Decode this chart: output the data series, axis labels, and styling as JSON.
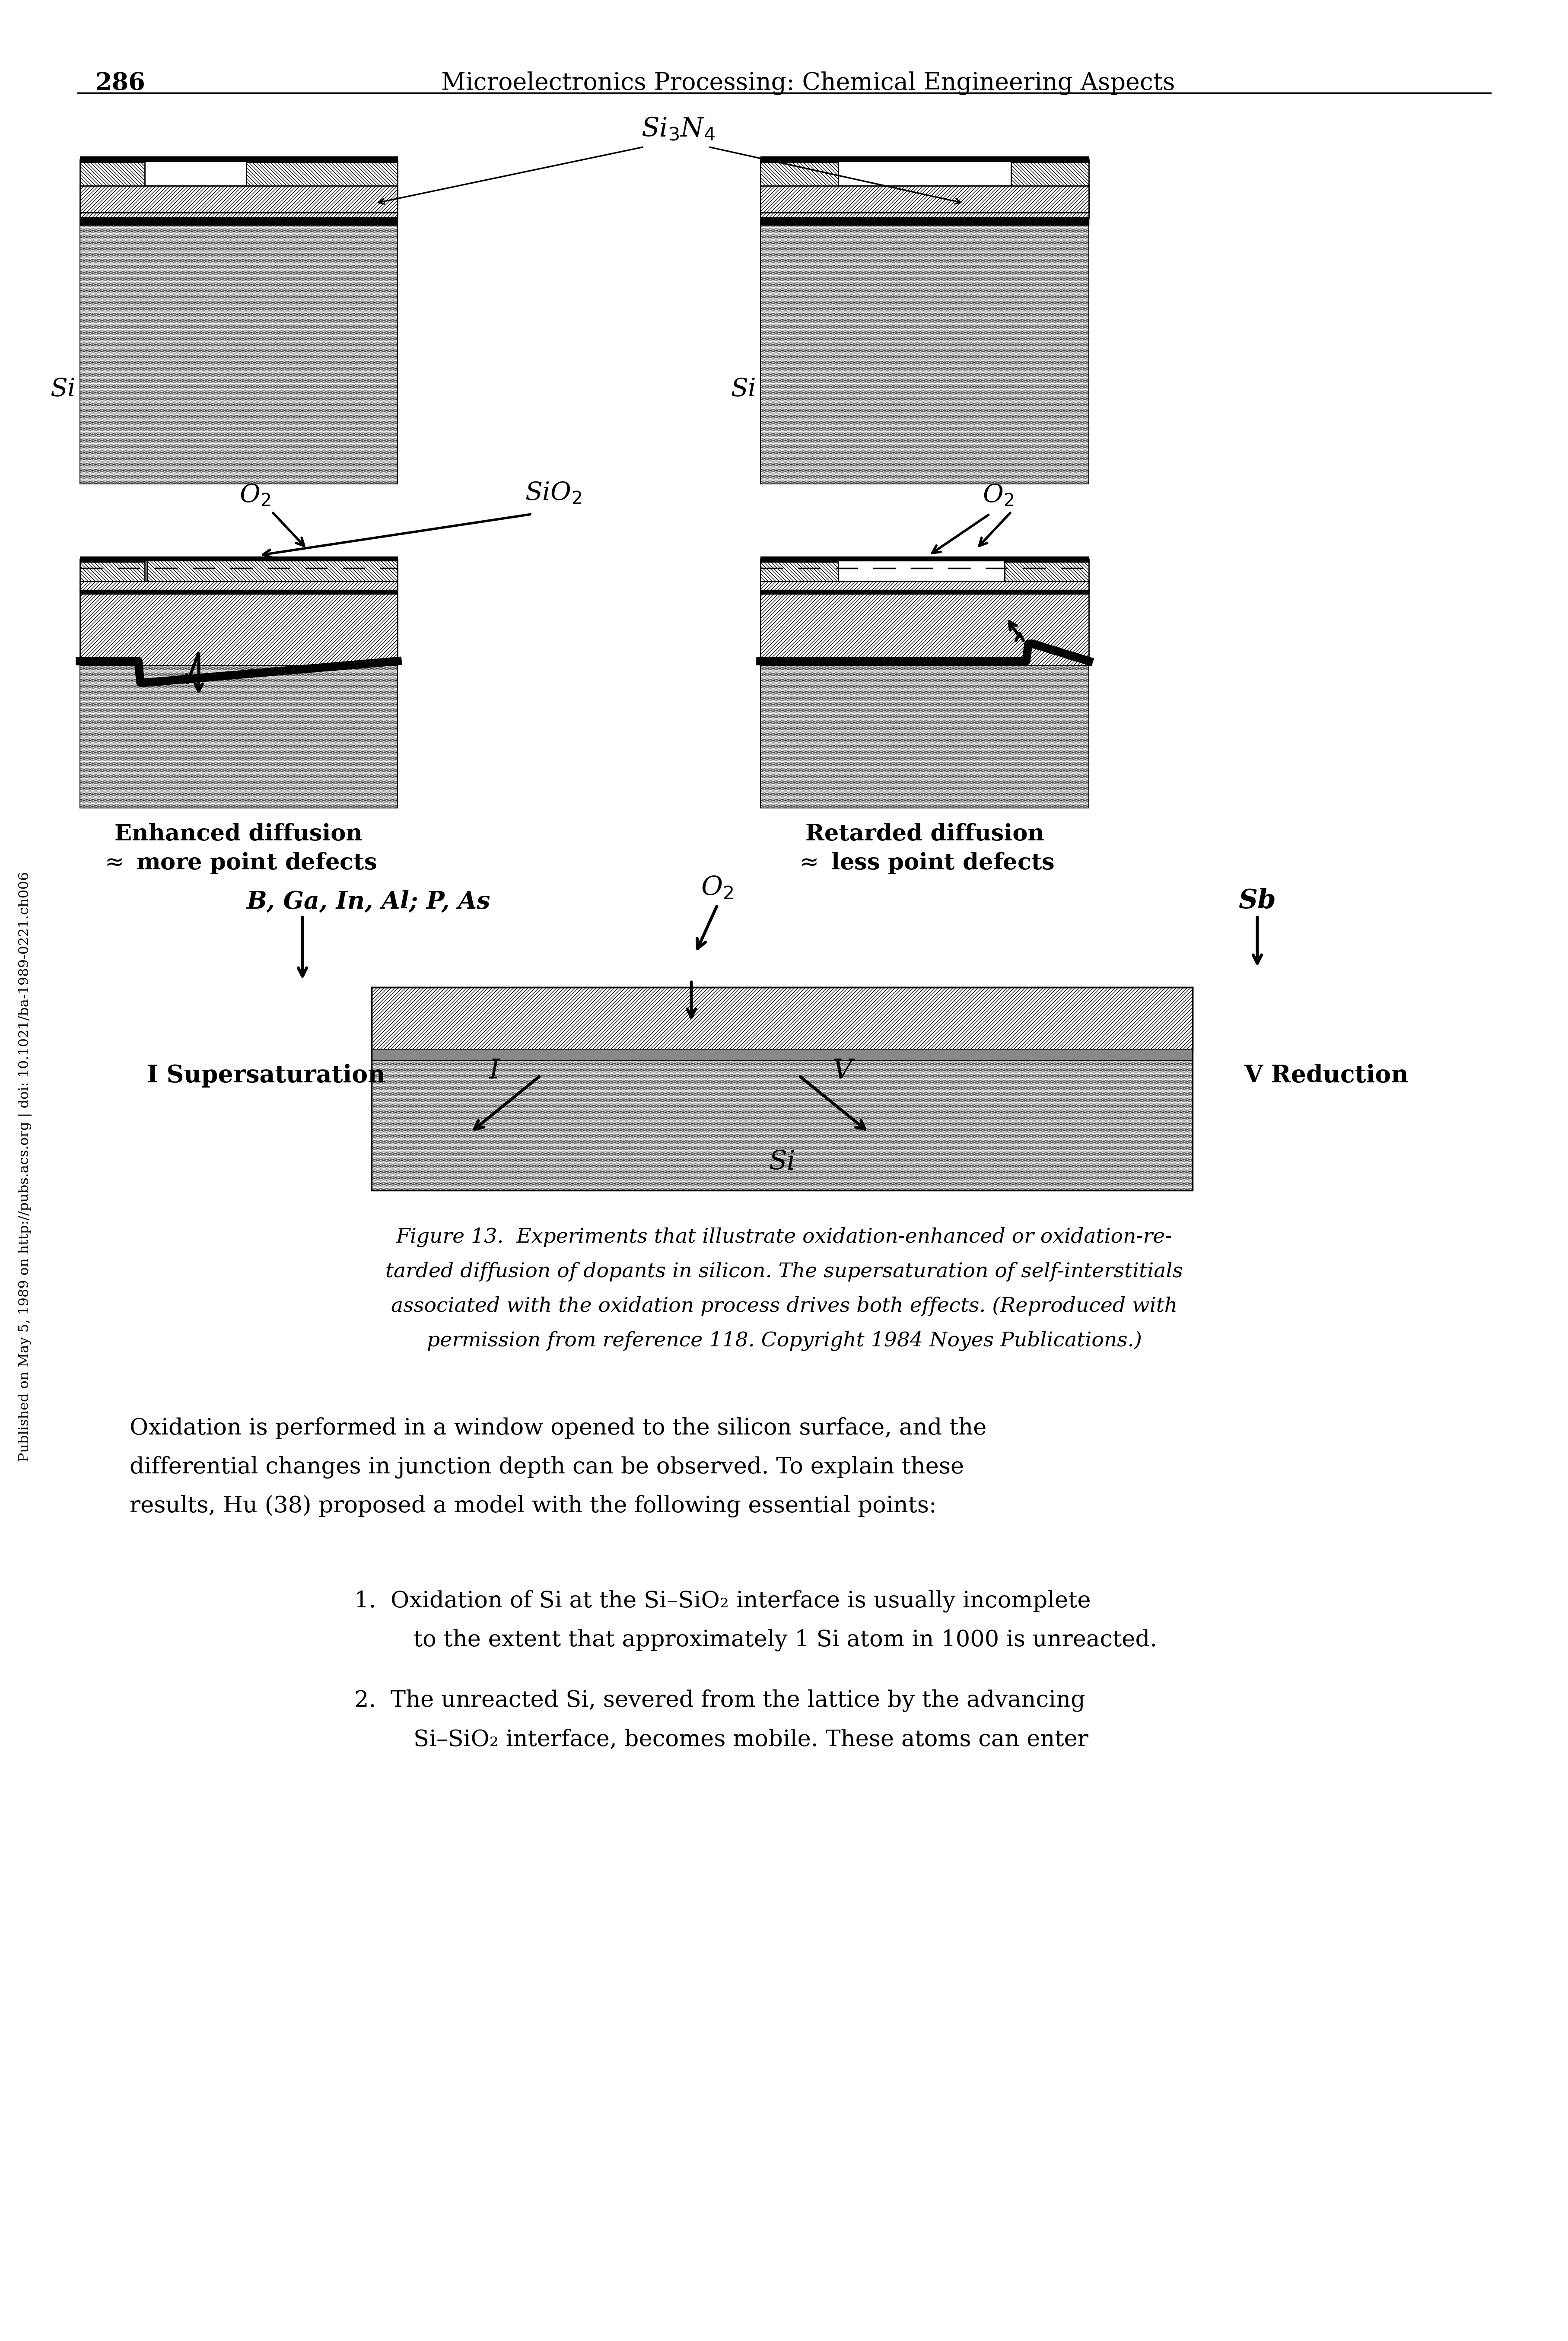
{
  "page_number": "286",
  "header_title": "Microelectronics Processing: Chemical Engineering Aspects",
  "figure_caption_line1": "Figure 13.  Experiments that illustrate oxidation-enhanced or oxidation-re-",
  "figure_caption_line2": "tarded diffusion of dopants in silicon. The supersaturation of self-interstitials",
  "figure_caption_line3": "associated with the oxidation process drives both effects. (Reproduced with",
  "figure_caption_line4": "permission from reference 118. Copyright 1984 Noyes Publications.)",
  "body_text_line1": "Oxidation is performed in a window opened to the silicon surface, and the",
  "body_text_line2": "differential changes in junction depth can be observed. To explain these",
  "body_text_line3": "results, Hu (38) proposed a model with the following essential points:",
  "list1_line1": "1.  Oxidation of Si at the Si–SiO₂ interface is usually incomplete",
  "list1_line2": "    to the extent that approximately 1 Si atom in 1000 is unreacted.",
  "list2_line1": "2.  The unreacted Si, severed from the lattice by the advancing",
  "list2_line2": "    Si–SiO₂ interface, becomes mobile. These atoms can enter",
  "left_sidebar_text": "Published on May 5, 1989 on http://pubs.acs.org | doi: 10.1021/ba-1989-0221.ch006",
  "background_color": "#ffffff",
  "text_color": "#000000"
}
